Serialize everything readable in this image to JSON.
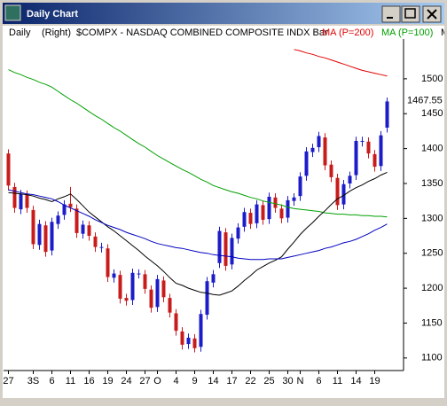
{
  "window_title": "Daily Chart",
  "chart_data": {
    "type": "candlestick",
    "period": "Daily",
    "axis_side": "(Right)",
    "title": "$COMPX - NASDAQ COMBINED COMPOSITE INDX Bar",
    "categories": [
      "27",
      null,
      null,
      null,
      "3S",
      null,
      null,
      "6",
      null,
      null,
      "11",
      null,
      null,
      "16",
      null,
      null,
      "19",
      null,
      null,
      "24",
      null,
      null,
      "27",
      null,
      "O",
      null,
      null,
      "4",
      null,
      null,
      "9",
      null,
      null,
      "14",
      null,
      null,
      "17",
      null,
      null,
      "22",
      null,
      null,
      "25",
      null,
      null,
      "30",
      null,
      "N",
      null,
      null,
      "6",
      null,
      null,
      "11",
      null,
      null,
      "14",
      null,
      null,
      "19",
      null,
      null
    ],
    "open": [
      1393,
      1345,
      1313,
      1334,
      1312,
      1262,
      1290,
      1254,
      1292,
      1305,
      1321,
      1314,
      1278,
      1290,
      1274,
      1258,
      1257,
      1215,
      1219,
      1186,
      1183,
      1221,
      1220,
      1198,
      1173,
      1211,
      1186,
      1164,
      1138,
      1120,
      1128,
      1116,
      1162,
      1208,
      1236,
      1280,
      1234,
      1271,
      1288,
      1308,
      1293,
      1319,
      1299,
      1330,
      1314,
      1301,
      1325,
      1332,
      1361,
      1395,
      1402,
      1416,
      1377,
      1358,
      1320,
      1350,
      1362,
      1410,
      1410,
      1392,
      1375,
      1430
    ],
    "high": [
      1399,
      1351,
      1341,
      1340,
      1318,
      1298,
      1296,
      1301,
      1310,
      1326,
      1345,
      1320,
      1297,
      1296,
      1280,
      1265,
      1263,
      1227,
      1225,
      1192,
      1228,
      1227,
      1226,
      1204,
      1219,
      1217,
      1192,
      1170,
      1144,
      1135,
      1134,
      1169,
      1216,
      1226,
      1288,
      1286,
      1278,
      1293,
      1315,
      1314,
      1326,
      1325,
      1337,
      1336,
      1320,
      1332,
      1336,
      1366,
      1402,
      1407,
      1424,
      1422,
      1383,
      1364,
      1355,
      1367,
      1417,
      1417,
      1416,
      1398,
      1425,
      1473
    ],
    "low": [
      1340,
      1308,
      1306,
      1308,
      1256,
      1255,
      1245,
      1247,
      1285,
      1298,
      1309,
      1272,
      1271,
      1268,
      1252,
      1251,
      1209,
      1208,
      1178,
      1175,
      1176,
      1214,
      1192,
      1165,
      1166,
      1180,
      1158,
      1132,
      1112,
      1113,
      1108,
      1109,
      1155,
      1201,
      1229,
      1225,
      1227,
      1264,
      1281,
      1285,
      1286,
      1291,
      1292,
      1308,
      1293,
      1294,
      1318,
      1325,
      1354,
      1388,
      1395,
      1369,
      1352,
      1312,
      1313,
      1343,
      1355,
      1403,
      1386,
      1367,
      1368,
      1423
    ],
    "close": [
      1347,
      1315,
      1335,
      1315,
      1263,
      1292,
      1252,
      1295,
      1304,
      1320,
      1316,
      1279,
      1291,
      1275,
      1259,
      1259,
      1216,
      1221,
      1185,
      1182,
      1222,
      1221,
      1199,
      1172,
      1213,
      1187,
      1165,
      1139,
      1119,
      1129,
      1114,
      1163,
      1210,
      1220,
      1282,
      1232,
      1272,
      1287,
      1309,
      1292,
      1320,
      1298,
      1331,
      1315,
      1300,
      1326,
      1330,
      1360,
      1396,
      1401,
      1418,
      1376,
      1359,
      1319,
      1349,
      1361,
      1411,
      1411,
      1393,
      1374,
      1419,
      1467.55
    ],
    "up_color": "#1c1cc8",
    "down_color": "#c81c1c",
    "lines": [
      {
        "name": "MA (P=200)",
        "color": "#e00000",
        "values": [
          null,
          null,
          null,
          null,
          null,
          null,
          null,
          null,
          null,
          null,
          null,
          null,
          null,
          null,
          null,
          null,
          null,
          null,
          null,
          null,
          null,
          null,
          null,
          null,
          null,
          null,
          null,
          null,
          null,
          null,
          null,
          null,
          null,
          null,
          null,
          null,
          null,
          null,
          null,
          null,
          null,
          null,
          null,
          null,
          null,
          null,
          1542,
          1540,
          1537,
          1535,
          1532,
          1530,
          1527,
          1524,
          1521,
          1518,
          1515,
          1512,
          1510,
          1508,
          1506,
          1504
        ]
      },
      {
        "name": "MA (P=100)",
        "color": "#00a000",
        "values": [
          1513,
          1509,
          1506,
          1502,
          1499,
          1495,
          1492,
          1488,
          1482,
          1476,
          1470,
          1465,
          1459,
          1453,
          1447,
          1442,
          1436,
          1430,
          1425,
          1419,
          1413,
          1407,
          1402,
          1396,
          1390,
          1385,
          1380,
          1375,
          1370,
          1366,
          1361,
          1356,
          1352,
          1347,
          1344,
          1341,
          1338,
          1336,
          1333,
          1330,
          1328,
          1325,
          1323,
          1321,
          1319,
          1316,
          1314,
          1313,
          1312,
          1311,
          1310,
          1308,
          1307,
          1306,
          1306,
          1305,
          1305,
          1304,
          1304,
          1303,
          1303,
          1302
        ]
      },
      {
        "name": "M",
        "color": "#000000",
        "values": [
          1337,
          1336,
          1335,
          1334,
          1332,
          1329,
          1327,
          1324,
          1328,
          1331,
          1335,
          1327,
          1318,
          1309,
          1302,
          1295,
          1288,
          1282,
          1275,
          1268,
          1261,
          1254,
          1246,
          1239,
          1232,
          1224,
          1215,
          1207,
          1204,
          1200,
          1197,
          1194,
          1193,
          1191,
          1190,
          1193,
          1196,
          1203,
          1211,
          1218,
          1226,
          1231,
          1236,
          1240,
          1245,
          1256,
          1266,
          1277,
          1286,
          1294,
          1303,
          1311,
          1320,
          1328,
          1333,
          1339,
          1344,
          1348,
          1353,
          1357,
          1362,
          1366
        ]
      },
      {
        "color": "#0000c0",
        "values": [
          1341,
          1339,
          1337,
          1335,
          1334,
          1332,
          1330,
          1328,
          1324,
          1319,
          1315,
          1311,
          1307,
          1303,
          1298,
          1294,
          1290,
          1287,
          1284,
          1280,
          1277,
          1274,
          1271,
          1267,
          1264,
          1262,
          1260,
          1258,
          1257,
          1255,
          1253,
          1251,
          1250,
          1248,
          1247,
          1246,
          1245,
          1243,
          1242,
          1241,
          1241,
          1241,
          1242,
          1242,
          1242,
          1244,
          1246,
          1248,
          1250,
          1252,
          1254,
          1257,
          1259,
          1262,
          1265,
          1267,
          1270,
          1274,
          1278,
          1283,
          1287,
          1292
        ]
      }
    ],
    "ylim": [
      1082,
      1557
    ],
    "yticks": [
      1100,
      1150,
      1200,
      1250,
      1300,
      1350,
      1400,
      1450,
      1500
    ]
  }
}
